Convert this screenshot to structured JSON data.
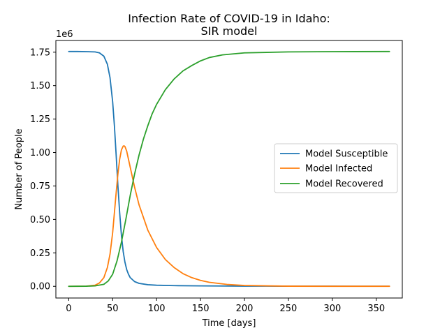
{
  "chart_data": {
    "type": "line",
    "title_line1": "Infection Rate of COVID-19 in Idaho:",
    "title_line2": "SIR model",
    "xlabel": "Time [days]",
    "ylabel": "Number of People",
    "y_offset_text": "1e6",
    "xlim": [
      -14.6,
      379.6
    ],
    "ylim": [
      -0.0875,
      1.8375
    ],
    "y_scale": 1000000,
    "xticks": [
      0,
      50,
      100,
      150,
      200,
      250,
      300,
      350
    ],
    "xtick_labels": [
      "0",
      "50",
      "100",
      "150",
      "200",
      "250",
      "300",
      "350"
    ],
    "yticks": [
      0.0,
      0.25,
      0.5,
      0.75,
      1.0,
      1.25,
      1.5,
      1.75
    ],
    "ytick_labels": [
      "0.00",
      "0.25",
      "0.50",
      "0.75",
      "1.00",
      "1.25",
      "1.50",
      "1.75"
    ],
    "grid": false,
    "legend_position": "center-right",
    "series": [
      {
        "name": "Model Susceptible",
        "color": "#1f77b4",
        "x": [
          0,
          10,
          20,
          30,
          35,
          40,
          44,
          47,
          50,
          52,
          54,
          56,
          58,
          60,
          62,
          64,
          66,
          68,
          70,
          75,
          80,
          90,
          100,
          120,
          150,
          200,
          250,
          300,
          365
        ],
        "y": [
          1.755,
          1.755,
          1.754,
          1.752,
          1.745,
          1.72,
          1.66,
          1.56,
          1.38,
          1.2,
          0.98,
          0.75,
          0.55,
          0.38,
          0.26,
          0.18,
          0.125,
          0.09,
          0.065,
          0.035,
          0.022,
          0.012,
          0.008,
          0.005,
          0.003,
          0.0015,
          0.001,
          0.0008,
          0.0005
        ]
      },
      {
        "name": "Model Infected",
        "color": "#ff7f0e",
        "x": [
          0,
          20,
          30,
          35,
          40,
          44,
          47,
          50,
          52,
          54,
          56,
          58,
          60,
          62,
          63,
          64,
          66,
          68,
          70,
          75,
          80,
          90,
          100,
          110,
          120,
          130,
          140,
          150,
          160,
          180,
          200,
          250,
          300,
          365
        ],
        "y": [
          0.0,
          0.001,
          0.008,
          0.025,
          0.065,
          0.14,
          0.24,
          0.4,
          0.55,
          0.7,
          0.84,
          0.95,
          1.02,
          1.048,
          1.05,
          1.045,
          1.01,
          0.95,
          0.89,
          0.74,
          0.61,
          0.42,
          0.29,
          0.2,
          0.14,
          0.095,
          0.065,
          0.044,
          0.03,
          0.014,
          0.006,
          0.001,
          0.0003,
          0.0001
        ]
      },
      {
        "name": "Model Recovered",
        "color": "#2ca02c",
        "x": [
          0,
          20,
          30,
          40,
          45,
          50,
          55,
          60,
          65,
          70,
          75,
          80,
          85,
          90,
          95,
          100,
          110,
          120,
          130,
          140,
          150,
          160,
          175,
          200,
          250,
          300,
          365
        ],
        "y": [
          0.0,
          0.001,
          0.003,
          0.015,
          0.04,
          0.09,
          0.19,
          0.33,
          0.5,
          0.68,
          0.84,
          0.98,
          1.1,
          1.2,
          1.29,
          1.36,
          1.47,
          1.55,
          1.61,
          1.65,
          1.685,
          1.71,
          1.73,
          1.745,
          1.752,
          1.754,
          1.755
        ]
      }
    ]
  }
}
